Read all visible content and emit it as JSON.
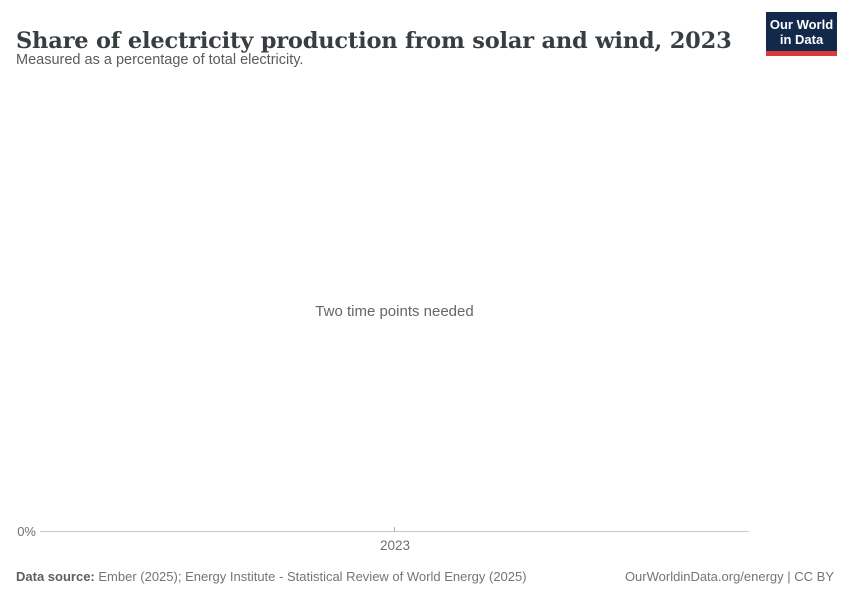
{
  "header": {
    "title": "Share of electricity production from solar and wind, 2023",
    "subtitle": "Measured as a percentage of total electricity."
  },
  "logo": {
    "line1": "Our World",
    "line2": "in Data"
  },
  "plot": {
    "message": "Two time points needed",
    "y_tick_label": "0%",
    "x_tick_label": "2023"
  },
  "footer": {
    "data_source_label": "Data source:",
    "data_source_value": " Ember (2025); Energy Institute - Statistical Review of World Energy (2025)",
    "right_text": "OurWorldinData.org/energy | CC BY"
  },
  "colors": {
    "logo_navy": "#12294b",
    "logo_red": "#d93a3a",
    "title_text": "#383d42",
    "subtitle_text": "#5b5b5b",
    "message_text": "#666666",
    "axis_line": "#c8c8c8",
    "tick_label_text": "#707070",
    "footer_text": "#757575"
  },
  "chart_data": {
    "type": "line",
    "title": "Share of electricity production from solar and wind, 2023",
    "subtitle": "Measured as a percentage of total electricity.",
    "series": [],
    "x_ticks": [
      "2023"
    ],
    "y_ticks": [
      "0%"
    ],
    "annotations": [
      "Two time points needed"
    ],
    "legend_position": "none",
    "grid": false
  }
}
